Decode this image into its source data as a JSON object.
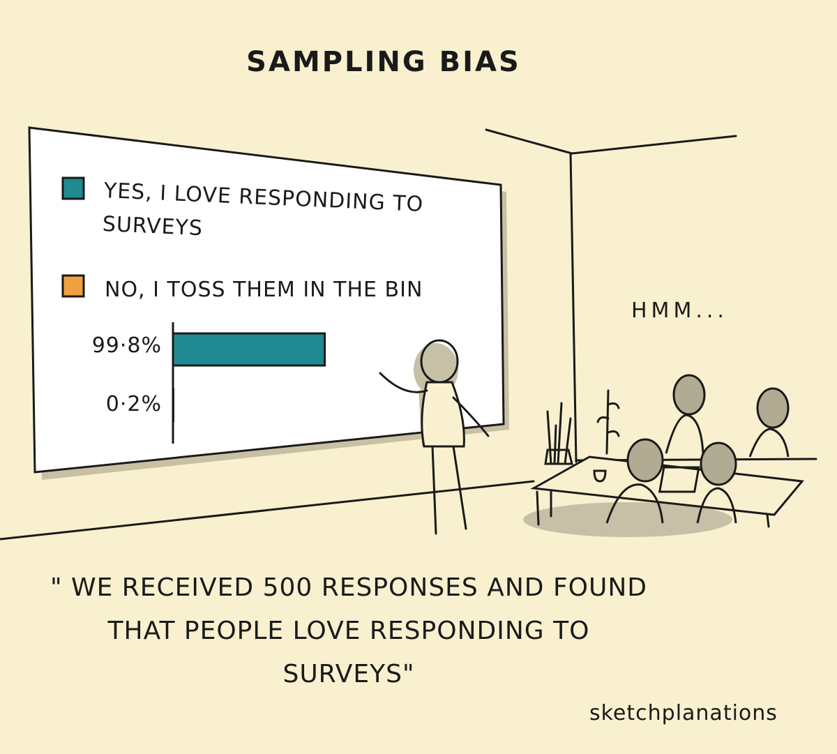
{
  "title": "SAMPLING BIAS",
  "chart_data": {
    "type": "bar",
    "orientation": "horizontal",
    "series": [
      {
        "name": "YES, I LOVE RESPONDING TO SURVEYS",
        "color": "#1f8a91",
        "values": [
          99.8
        ],
        "value_labels": [
          "99·8%"
        ]
      },
      {
        "name": "NO, I TOSS THEM IN THE BIN",
        "color": "#f0a040",
        "values": [
          0.2
        ],
        "value_labels": [
          "0·2%"
        ]
      }
    ],
    "xlim": [
      0,
      100
    ]
  },
  "speech": "HMM...",
  "caption": "\" WE RECEIVED 500 RESPONSES AND FOUND THAT PEOPLE LOVE RESPONDING TO SURVEYS\"",
  "credit": "sketchplanations"
}
